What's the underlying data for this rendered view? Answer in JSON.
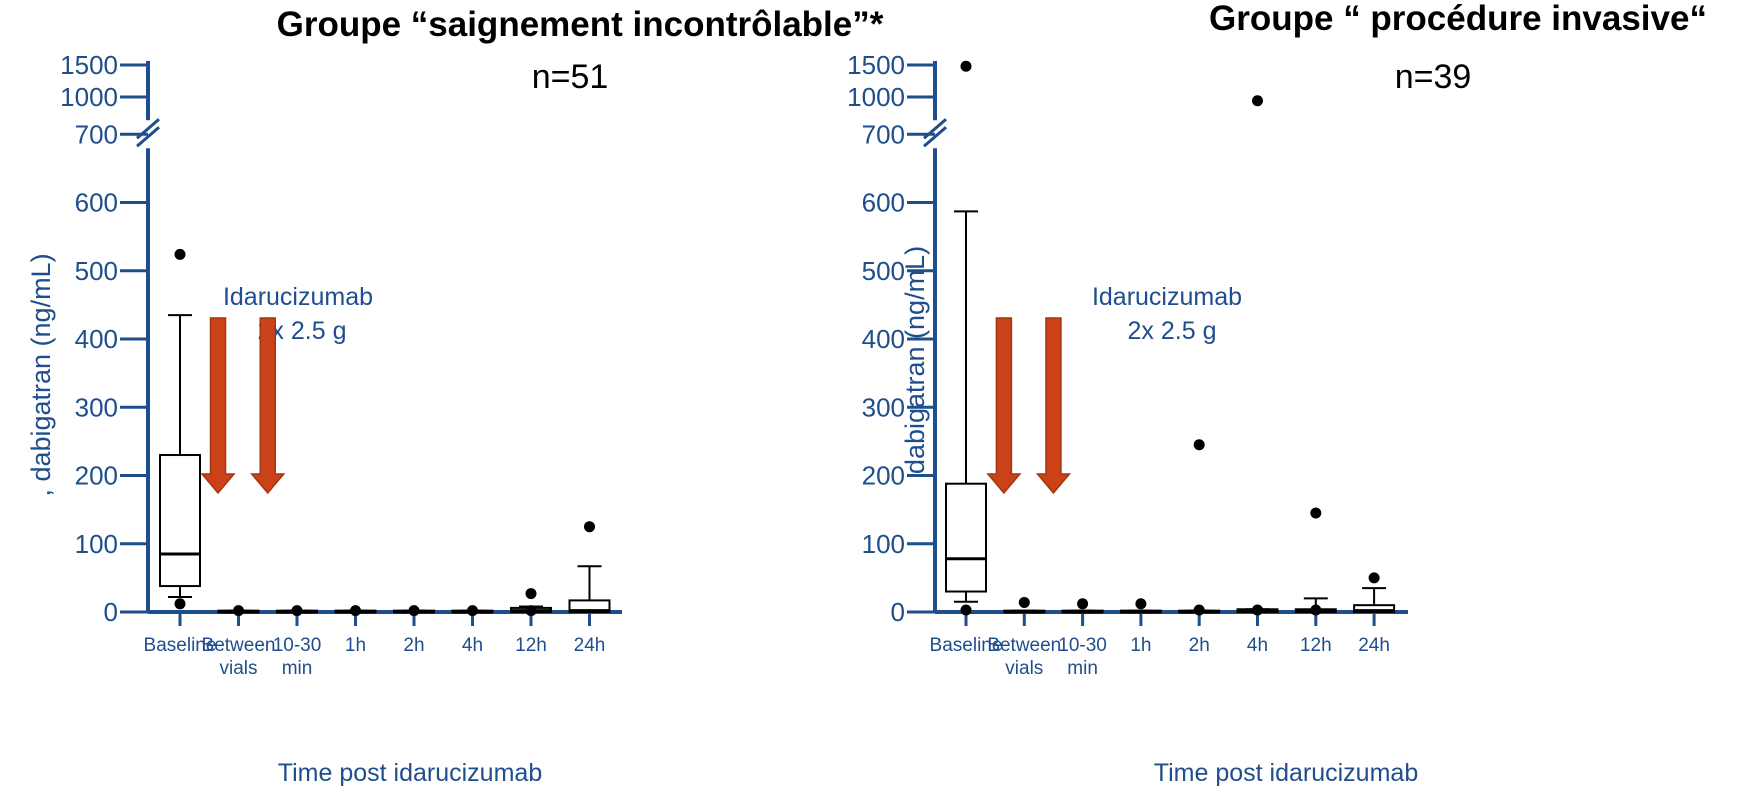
{
  "chart_data": [
    {
      "type": "box",
      "title": "Groupe “saignement incontrôlable”*",
      "subtitle": "n=51",
      "ylabel": ", dabigatran (ng/mL)",
      "xlabel": "Time post idarucizumab",
      "y_axis_break": [
        700,
        1000
      ],
      "yticks": [
        0,
        100,
        200,
        300,
        400,
        500,
        600,
        700,
        1000,
        1500
      ],
      "categories": [
        [
          "Baseline"
        ],
        [
          "Between",
          "vials"
        ],
        [
          "10-30",
          "min"
        ],
        [
          "1h"
        ],
        [
          "2h"
        ],
        [
          "4h"
        ],
        [
          "12h"
        ],
        [
          "24h"
        ]
      ],
      "boxes": [
        {
          "whisker_low": 22,
          "q1": 38,
          "median": 85,
          "q3": 230,
          "whisker_high": 435,
          "outliers": [
            12,
            524
          ]
        },
        {
          "whisker_low": 0,
          "q1": 0,
          "median": 0,
          "q3": 2,
          "whisker_high": 2,
          "outliers": [
            2
          ]
        },
        {
          "whisker_low": 0,
          "q1": 0,
          "median": 0,
          "q3": 2,
          "whisker_high": 2,
          "outliers": [
            2
          ]
        },
        {
          "whisker_low": 0,
          "q1": 0,
          "median": 0,
          "q3": 2,
          "whisker_high": 2,
          "outliers": [
            2
          ]
        },
        {
          "whisker_low": 0,
          "q1": 0,
          "median": 0,
          "q3": 2,
          "whisker_high": 2,
          "outliers": [
            2
          ]
        },
        {
          "whisker_low": 0,
          "q1": 0,
          "median": 0,
          "q3": 2,
          "whisker_high": 2,
          "outliers": [
            2
          ]
        },
        {
          "whisker_low": 0,
          "q1": 0,
          "median": 2,
          "q3": 6,
          "whisker_high": 8,
          "outliers": [
            2,
            27
          ]
        },
        {
          "whisker_low": 0,
          "q1": 0,
          "median": 2,
          "q3": 17,
          "whisker_high": 67,
          "outliers": [
            125
          ]
        }
      ],
      "annotation": {
        "line1": "Idarucizumab",
        "line2": "2x 2.5 g",
        "arrows_between": [
          0,
          1
        ]
      }
    },
    {
      "type": "box",
      "title": "Groupe “ procédure invasive“",
      "subtitle": "n=39",
      "ylabel": "dabigatran (ng/mL)",
      "xlabel": "Time post idarucizumab",
      "y_axis_break": [
        700,
        1000
      ],
      "yticks": [
        0,
        100,
        200,
        300,
        400,
        500,
        600,
        700,
        1000,
        1500
      ],
      "categories": [
        [
          "Baseline"
        ],
        [
          "Between",
          "vials"
        ],
        [
          "10-30",
          "min"
        ],
        [
          "1h"
        ],
        [
          "2h"
        ],
        [
          "4h"
        ],
        [
          "12h"
        ],
        [
          "24h"
        ]
      ],
      "boxes": [
        {
          "whisker_low": 15,
          "q1": 30,
          "median": 78,
          "q3": 188,
          "whisker_high": 587,
          "outliers": [
            3,
            1480
          ]
        },
        {
          "whisker_low": 0,
          "q1": 0,
          "median": 0,
          "q3": 2,
          "whisker_high": 2,
          "outliers": [
            14
          ]
        },
        {
          "whisker_low": 0,
          "q1": 0,
          "median": 0,
          "q3": 2,
          "whisker_high": 2,
          "outliers": [
            12
          ]
        },
        {
          "whisker_low": 0,
          "q1": 0,
          "median": 0,
          "q3": 2,
          "whisker_high": 2,
          "outliers": [
            12
          ]
        },
        {
          "whisker_low": 0,
          "q1": 0,
          "median": 0,
          "q3": 2,
          "whisker_high": 2,
          "outliers": [
            3,
            245
          ]
        },
        {
          "whisker_low": 0,
          "q1": 0,
          "median": 2,
          "q3": 4,
          "whisker_high": 4,
          "outliers": [
            3,
            970
          ]
        },
        {
          "whisker_low": 0,
          "q1": 0,
          "median": 2,
          "q3": 4,
          "whisker_high": 20,
          "outliers": [
            3,
            145
          ]
        },
        {
          "whisker_low": 0,
          "q1": 0,
          "median": 2,
          "q3": 10,
          "whisker_high": 35,
          "outliers": [
            50
          ]
        }
      ],
      "annotation": {
        "line1": "Idarucizumab",
        "line2": "2x 2.5 g",
        "arrows_between": [
          0,
          1
        ]
      }
    }
  ],
  "colors": {
    "axis": "#1f4e8c",
    "arrow": "#cc4218",
    "arrow_edge": "#a8340f",
    "box": "#000000"
  }
}
